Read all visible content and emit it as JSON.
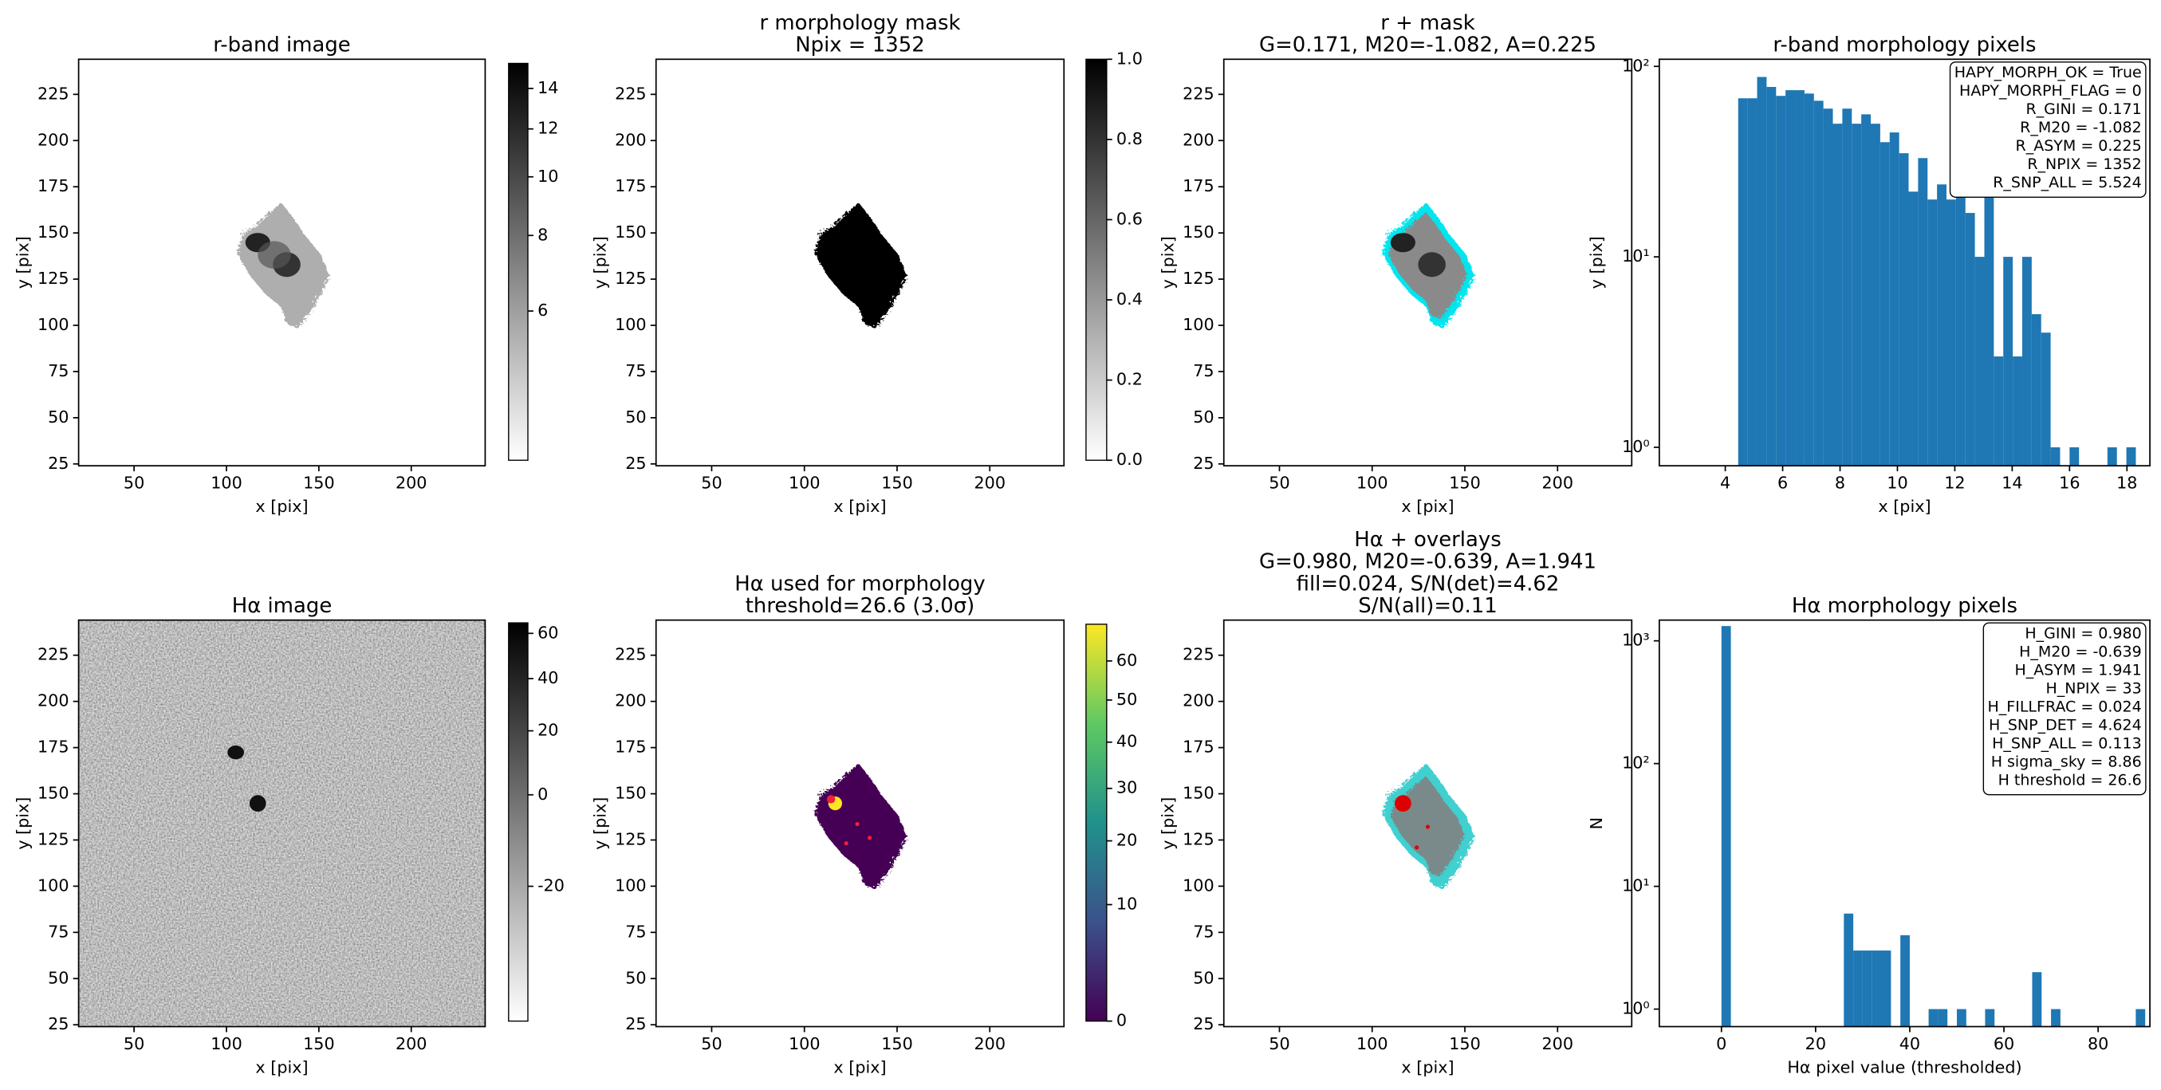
{
  "chart_data": [
    {
      "type": "image",
      "title": [
        "r-band image"
      ],
      "xlabel": "x [pix]",
      "ylabel": "y [pix]",
      "xlim": [
        20,
        240
      ],
      "ylim": [
        24,
        244
      ],
      "xticks": [
        50,
        100,
        150,
        200
      ],
      "yticks": [
        25,
        50,
        75,
        100,
        125,
        150,
        175,
        200,
        225
      ],
      "colorbar": {
        "cmap": "gray_r",
        "norm": "log",
        "clim": [
          3.4,
          15.4
        ],
        "ticks": [
          6,
          8,
          10,
          12,
          14
        ]
      }
    },
    {
      "type": "image",
      "title": [
        "r morphology mask",
        "Npix = 1352"
      ],
      "xlabel": "x [pix]",
      "ylabel": "y [pix]",
      "xlim": [
        20,
        240
      ],
      "ylim": [
        24,
        244
      ],
      "xticks": [
        50,
        100,
        150,
        200
      ],
      "yticks": [
        25,
        50,
        75,
        100,
        125,
        150,
        175,
        200,
        225
      ],
      "colorbar": {
        "cmap": "gray_r",
        "norm": "linear",
        "clim": [
          0,
          1
        ],
        "ticks": [
          {
            "value": 0,
            "label": "0.0"
          },
          {
            "value": 0.2,
            "label": "0.2"
          },
          {
            "value": 0.4,
            "label": "0.4"
          },
          {
            "value": 0.6,
            "label": "0.6"
          },
          {
            "value": 0.8,
            "label": "0.8"
          },
          {
            "value": 1,
            "label": "1.0"
          }
        ]
      }
    },
    {
      "type": "image",
      "title": [
        "r + mask",
        "G=0.171, M20=-1.082, A=0.225"
      ],
      "xlabel": "x [pix]",
      "ylabel": "y [pix]",
      "xlim": [
        20,
        240
      ],
      "ylim": [
        24,
        244
      ],
      "xticks": [
        50,
        100,
        150,
        200
      ],
      "yticks": [
        25,
        50,
        75,
        100,
        125,
        150,
        175,
        200,
        225
      ]
    },
    {
      "type": "histogram",
      "title": [
        "r-band morphology pixels"
      ],
      "xlabel": "x [pix]",
      "ylabel": "y [pix]",
      "color": "#1f77b4",
      "log_y": true,
      "xlim": [
        1.7,
        18.8
      ],
      "ylim": [
        0.8,
        109
      ],
      "xticks": [
        4,
        6,
        8,
        10,
        12,
        14,
        16,
        18
      ],
      "yticks": [
        {
          "value": 1,
          "label": "10⁰"
        },
        {
          "value": 10,
          "label": "10¹"
        },
        {
          "value": 100,
          "label": "10²"
        }
      ],
      "bins": [
        4.45,
        4.78,
        5.11,
        5.44,
        5.77,
        6.1,
        6.43,
        6.76,
        7.09,
        7.42,
        7.75,
        8.08,
        8.41,
        8.74,
        9.07,
        9.4,
        9.73,
        10.06,
        10.39,
        10.72,
        11.05,
        11.38,
        11.71,
        12.04,
        12.37,
        12.7,
        13.03,
        13.36,
        13.69,
        14.02,
        14.35,
        14.68,
        15.01,
        15.34,
        15.67,
        16.0,
        16.33,
        16.66,
        16.99,
        17.32,
        17.65,
        17.98,
        18.31
      ],
      "values": [
        68,
        68,
        88,
        78,
        70,
        75,
        75,
        72,
        66,
        60,
        50,
        60,
        50,
        56,
        50,
        40,
        45,
        35,
        22,
        33,
        20,
        24,
        20,
        22,
        17,
        10,
        30,
        3,
        10,
        3,
        10,
        5,
        4,
        1,
        0,
        1,
        0,
        0,
        0,
        1,
        0,
        1
      ],
      "annotations": [
        "HAPY_MORPH_OK = True",
        "HAPY_MORPH_FLAG = 0",
        "R_GINI = 0.171",
        "R_M20 = -1.082",
        "R_ASYM = 0.225",
        "R_NPIX = 1352",
        "R_SNP_ALL = 5.524"
      ]
    },
    {
      "type": "image",
      "title": [
        "Hα image"
      ],
      "xlabel": "x [pix]",
      "ylabel": "y [pix]",
      "xlim": [
        20,
        240
      ],
      "ylim": [
        24,
        244
      ],
      "xticks": [
        50,
        100,
        150,
        200
      ],
      "yticks": [
        25,
        50,
        75,
        100,
        125,
        150,
        175,
        200,
        225
      ],
      "colorbar": {
        "cmap": "gray_r",
        "norm": "power",
        "gamma": 0.5,
        "clim": [
          -31,
          65
        ],
        "ticks": [
          -20,
          0,
          20,
          40,
          60
        ]
      }
    },
    {
      "type": "image",
      "title": [
        "Hα used for morphology",
        "threshold=26.6 (3.0σ)"
      ],
      "xlabel": "x [pix]",
      "ylabel": "y [pix]",
      "xlim": [
        20,
        240
      ],
      "ylim": [
        24,
        244
      ],
      "xticks": [
        50,
        100,
        150,
        200
      ],
      "yticks": [
        25,
        50,
        75,
        100,
        125,
        150,
        175,
        200,
        225
      ],
      "colorbar": {
        "cmap": "viridis",
        "norm": "power",
        "gamma": 0.63,
        "clim": [
          0,
          70
        ],
        "ticks": [
          0,
          10,
          20,
          30,
          40,
          50,
          60
        ]
      }
    },
    {
      "type": "image",
      "title": [
        "Hα + overlays",
        "G=0.980, M20=-0.639, A=1.941",
        "fill=0.024, S/N(det)=4.62",
        "S/N(all)=0.11"
      ],
      "xlabel": "x [pix]",
      "ylabel": "y [pix]",
      "xlim": [
        20,
        240
      ],
      "ylim": [
        24,
        244
      ],
      "xticks": [
        50,
        100,
        150,
        200
      ],
      "yticks": [
        25,
        50,
        75,
        100,
        125,
        150,
        175,
        200,
        225
      ]
    },
    {
      "type": "histogram",
      "title": [
        "Hα morphology pixels"
      ],
      "xlabel": "Hα pixel value (thresholded)",
      "ylabel": "N",
      "color": "#1f77b4",
      "log_y": true,
      "xlim": [
        -13.2,
        91
      ],
      "ylim": [
        0.72,
        1475
      ],
      "xticks": [
        0,
        20,
        40,
        60,
        80
      ],
      "yticks": [
        {
          "value": 1,
          "label": "10⁰"
        },
        {
          "value": 10,
          "label": "10¹"
        },
        {
          "value": 100,
          "label": "10²"
        },
        {
          "value": 1000,
          "label": "10³"
        }
      ],
      "bins": [
        0,
        2,
        4,
        6,
        8,
        10,
        12,
        14,
        16,
        18,
        20,
        22,
        24,
        26,
        28,
        30,
        32,
        34,
        36,
        38,
        40,
        42,
        44,
        46,
        48,
        50,
        52,
        54,
        56,
        58,
        60,
        62,
        64,
        66,
        68,
        70,
        72,
        74,
        76,
        78,
        80,
        82,
        84,
        86,
        88,
        90,
        92
      ],
      "values": [
        1319,
        0,
        0,
        0,
        0,
        0,
        0,
        0,
        0,
        0,
        0,
        0,
        0,
        6,
        3,
        3,
        3,
        3,
        0,
        4,
        0,
        0,
        1,
        1,
        0,
        1,
        0,
        0,
        1,
        0,
        0,
        0,
        0,
        2,
        0,
        1,
        0,
        0,
        0,
        0,
        0,
        0,
        0,
        0,
        1,
        0
      ],
      "annotations": [
        "H_GINI = 0.980",
        "H_M20 = -0.639",
        "H_ASYM = 1.941",
        "H_NPIX = 33",
        "H_FILLFRAC = 0.024",
        "H_SNP_DET = 4.624",
        "H_SNP_ALL = 0.113",
        "H sigma_sky = 8.86",
        "H threshold = 26.6"
      ]
    }
  ]
}
